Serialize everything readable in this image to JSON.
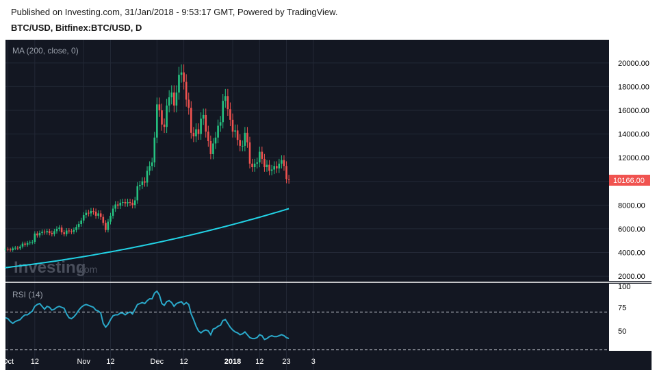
{
  "header": {
    "published": "Published on Investing.com, 31/Jan/2018 - 9:53:17 GMT, Powered by TradingView.",
    "symbol": "BTC/USD, Bitfinex:BTC/USD, D"
  },
  "watermark": {
    "text": "Investing",
    "suffix": ".com"
  },
  "colors": {
    "background": "#131722",
    "up": "#26c281",
    "down": "#f05350",
    "ma": "#22d3e6",
    "rsi": "#2aa8c9",
    "grid": "#232836"
  },
  "chart_data": [
    {
      "type": "candlestick",
      "indicator": "MA (200, close, 0)",
      "y_ticks": [
        "20000.00",
        "18000.00",
        "16000.00",
        "14000.00",
        "12000.00",
        "10000.00",
        "8000.00",
        "6000.00",
        "4000.00",
        "2000.00"
      ],
      "ylim": [
        1600,
        20800
      ],
      "last_price_label": "10166.00",
      "x_labels": [
        {
          "text": "Oct",
          "date": "2017-10-01"
        },
        {
          "text": "12",
          "date": "2017-10-12"
        },
        {
          "text": "Nov",
          "date": "2017-11-01"
        },
        {
          "text": "12",
          "date": "2017-11-12"
        },
        {
          "text": "Dec",
          "date": "2017-12-01"
        },
        {
          "text": "12",
          "date": "2017-12-12"
        },
        {
          "text": "2018",
          "date": "2018-01-01"
        },
        {
          "text": "12",
          "date": "2018-01-12"
        },
        {
          "text": "23",
          "date": "2018-01-23"
        },
        {
          "text": "3",
          "date": "2018-02-03"
        }
      ],
      "x_start": "2017-09-30",
      "closes": [
        4300,
        4250,
        4200,
        4350,
        4400,
        4350,
        4500,
        4750,
        4650,
        4800,
        4850,
        4900,
        5600,
        5450,
        5650,
        5750,
        5700,
        5800,
        5650,
        5550,
        5800,
        6000,
        6100,
        5700,
        5550,
        5850,
        5800,
        5750,
        5900,
        6150,
        6400,
        6700,
        7150,
        7350,
        7300,
        7500,
        7450,
        7100,
        7300,
        7000,
        6500,
        5900,
        6600,
        7100,
        7700,
        8050,
        7950,
        8200,
        8250,
        8150,
        8250,
        8200,
        8000,
        8400,
        9600,
        9700,
        10000,
        9900,
        10900,
        11300,
        11600,
        13700,
        16500,
        16000,
        14800,
        14600,
        16400,
        17100,
        17500,
        16400,
        17500,
        19000,
        19200,
        18400,
        16900,
        16200,
        14100,
        13800,
        14400,
        14000,
        15300,
        15600,
        14200,
        13400,
        12300,
        13200,
        13700,
        14700,
        15000,
        16800,
        17200,
        16100,
        15200,
        14200,
        14300,
        13500,
        13000,
        13000,
        14100,
        13300,
        11500,
        11200,
        11500,
        11600,
        12500,
        11900,
        11200,
        11400,
        10900,
        11000,
        11300,
        11100,
        11500,
        11800,
        11300,
        10200,
        10166
      ],
      "ma_values": [
        2700,
        7700
      ],
      "series": [
        {
          "name": "MA (200, close, 0)"
        }
      ]
    },
    {
      "type": "line",
      "indicator": "RSI (14)",
      "y_ticks": [
        "100",
        "75",
        "50"
      ],
      "ylim": [
        29,
        100
      ],
      "levels": [
        70,
        30
      ],
      "values": [
        64,
        63,
        60,
        58,
        60,
        61,
        62,
        65,
        67,
        67,
        69,
        71,
        76,
        78,
        79,
        76,
        73,
        76,
        75,
        72,
        73,
        75,
        76,
        75,
        74,
        68,
        64,
        63,
        65,
        68,
        72,
        75,
        77,
        78,
        77,
        76,
        75,
        72,
        71,
        69,
        58,
        54,
        57,
        62,
        66,
        67,
        67,
        69,
        69,
        67,
        69,
        70,
        68,
        73,
        78,
        79,
        80,
        79,
        82,
        84,
        84,
        90,
        92,
        88,
        79,
        77,
        81,
        82,
        80,
        76,
        79,
        80,
        81,
        78,
        80,
        78,
        68,
        62,
        55,
        50,
        48,
        50,
        51,
        50,
        46,
        52,
        53,
        55,
        56,
        61,
        62,
        58,
        54,
        51,
        49,
        48,
        46,
        47,
        49,
        46,
        43,
        42,
        42,
        43,
        46,
        45,
        41,
        42,
        44,
        45,
        44,
        44,
        45,
        46,
        45,
        43,
        42
      ]
    }
  ]
}
